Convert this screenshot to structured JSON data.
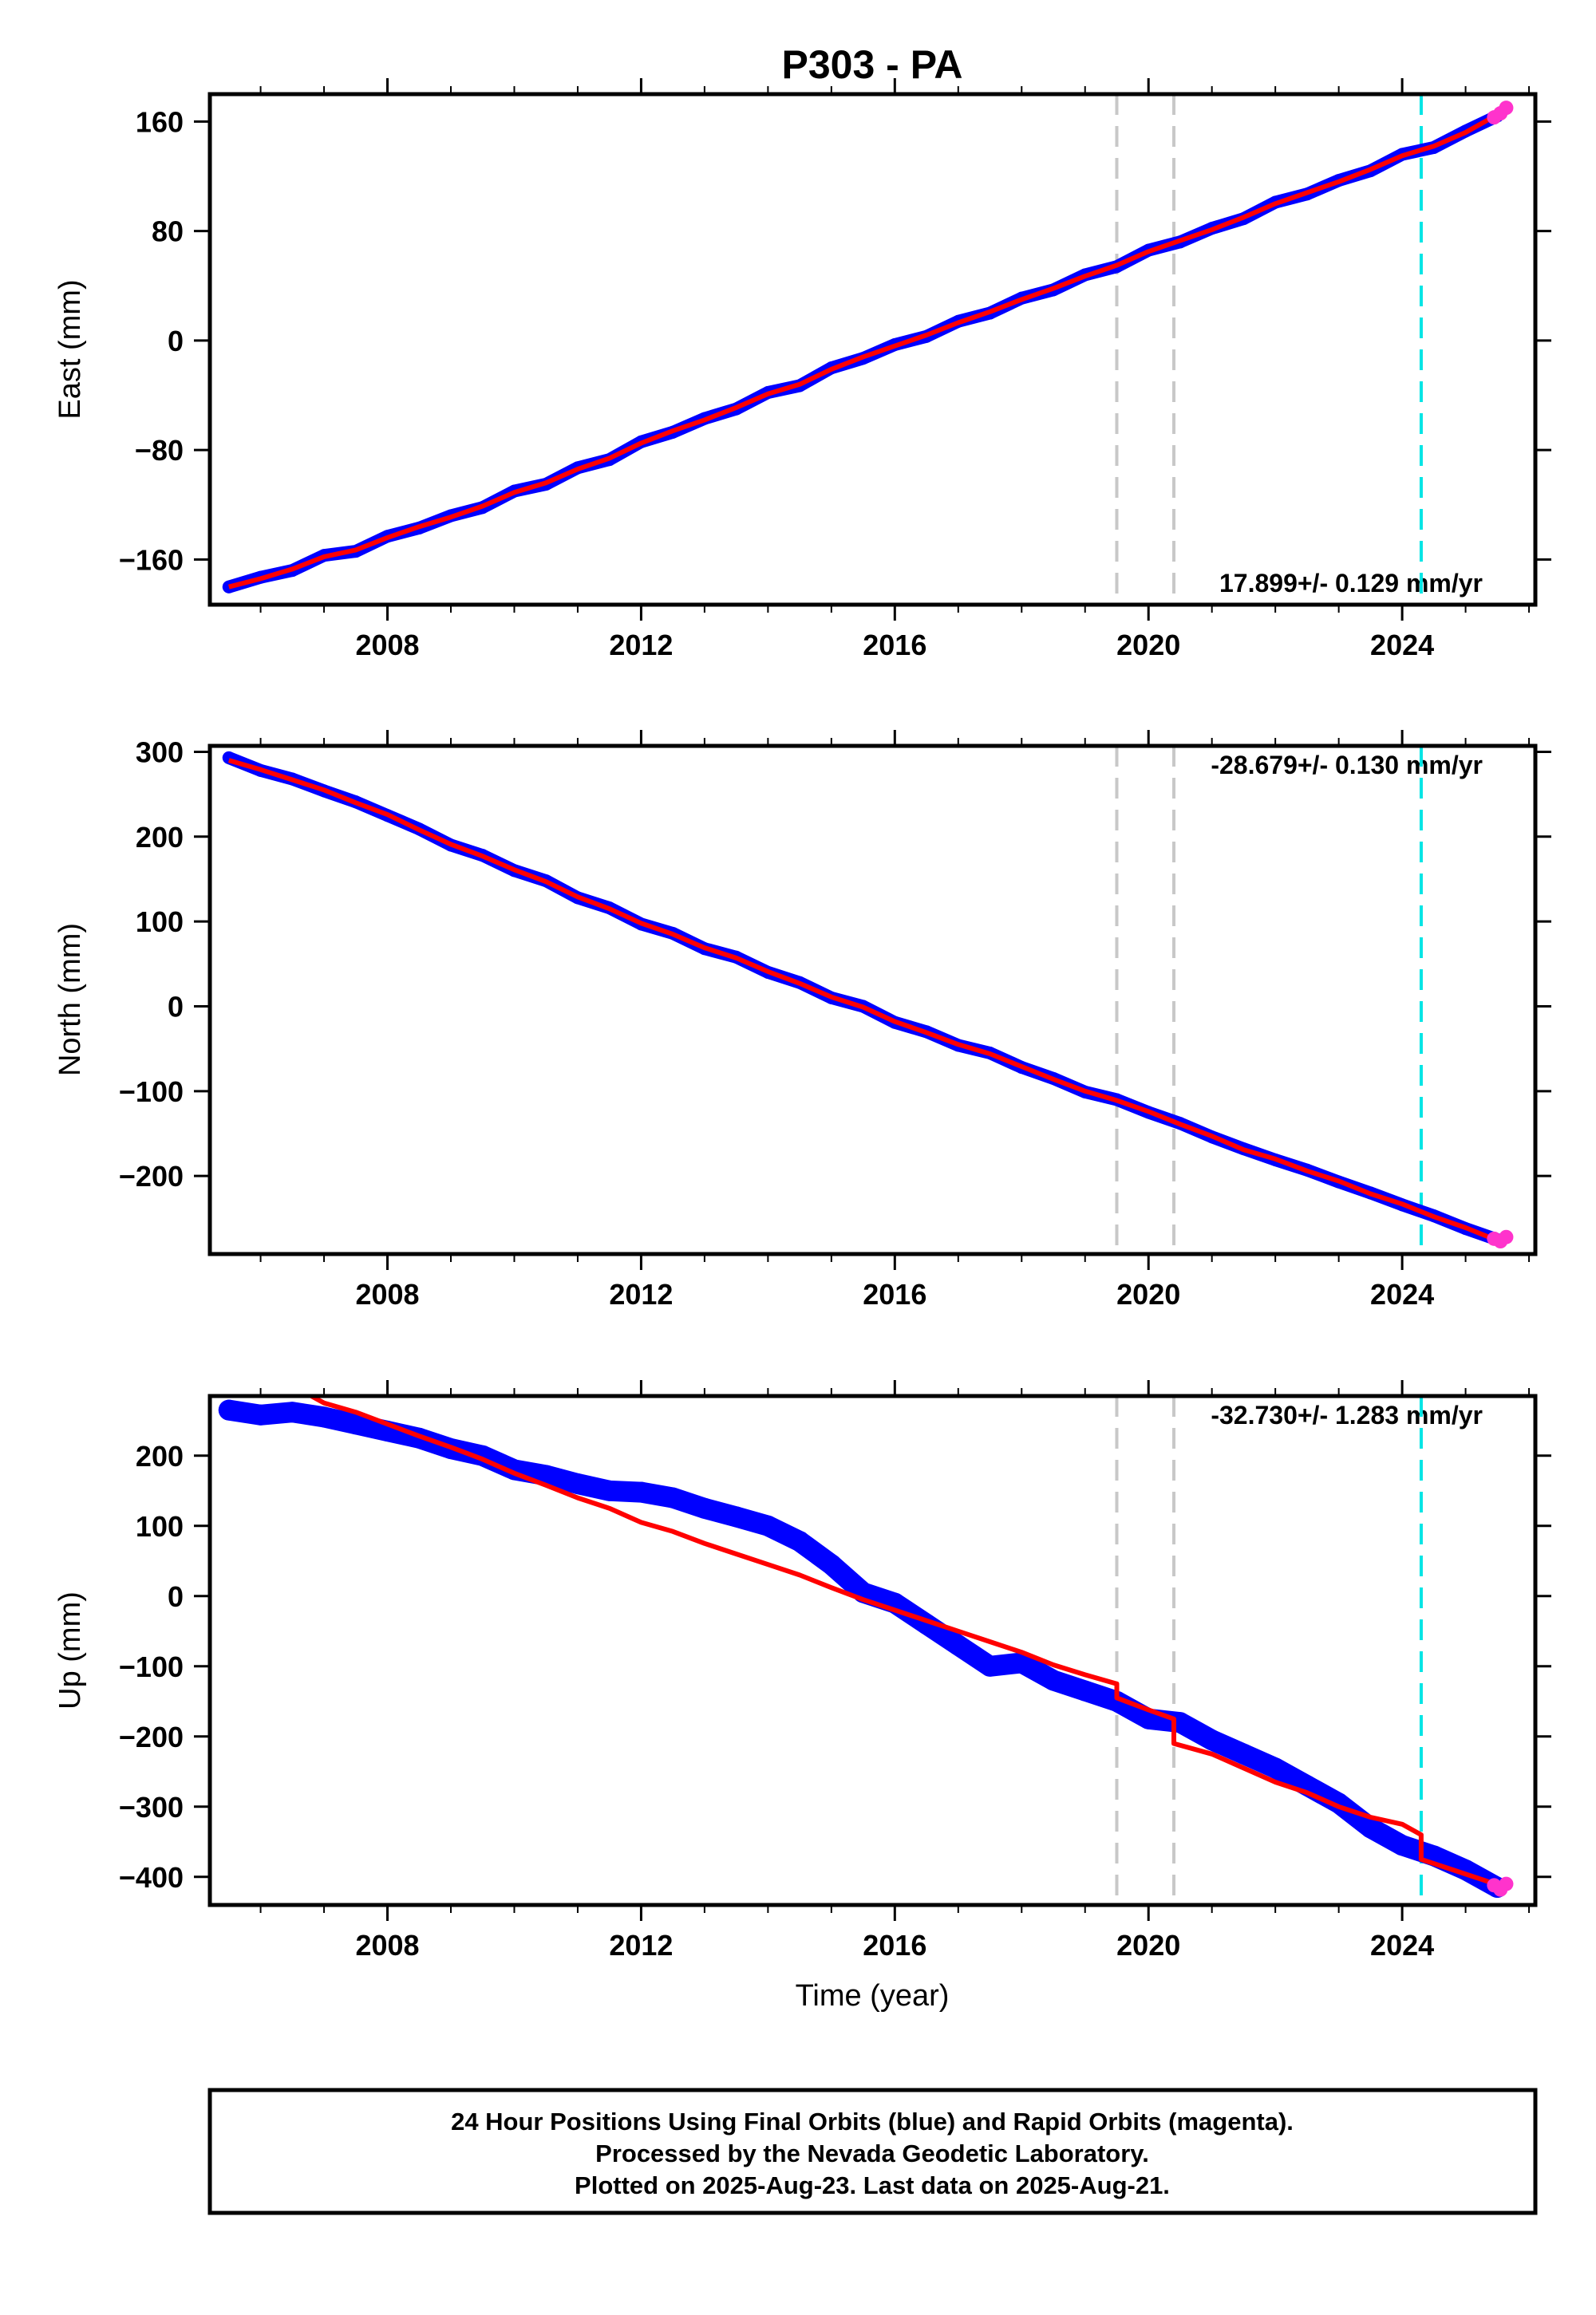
{
  "title": "P303 - PA",
  "footer": {
    "lines": [
      "24 Hour Positions Using Final Orbits (blue) and Rapid Orbits (magenta).",
      "Processed by the Nevada Geodetic Laboratory.",
      "Plotted on 2025-Aug-23. Last data on 2025-Aug-21."
    ]
  },
  "colors": {
    "final_orbits": "#0000ff",
    "rapid_orbits": "#ff33cc",
    "model": "#ff0000",
    "equipment_change": "#c8c8c8",
    "earthquake": "#00e5e5"
  },
  "chart_data": [
    {
      "type": "line",
      "panel": "east",
      "ylabel": "East (mm)",
      "xlabel": "",
      "xlim": [
        2005.2,
        2026.1
      ],
      "ylim": [
        -193,
        180
      ],
      "x_ticks": [
        2008,
        2012,
        2016,
        2020,
        2024
      ],
      "y_ticks": [
        160,
        80,
        0,
        -80,
        -160
      ],
      "y_tick_labels": [
        "160",
        "80",
        "0",
        "−80",
        "−160"
      ],
      "rate_label": "17.899+/- 0.129 mm/yr",
      "rate_label_position": "bottom-right",
      "gray_dashed_lines": [
        2019.5,
        2020.4
      ],
      "cyan_dashed_lines": [
        2024.3
      ],
      "series": [
        {
          "role": "final",
          "x": [
            2005.5,
            2006.0,
            2006.5,
            2007.0,
            2007.5,
            2008.0,
            2008.5,
            2009.0,
            2009.5,
            2010.0,
            2010.5,
            2011.0,
            2011.5,
            2012.0,
            2012.5,
            2013.0,
            2013.5,
            2014.0,
            2014.5,
            2015.0,
            2015.5,
            2016.0,
            2016.5,
            2017.0,
            2017.5,
            2018.0,
            2018.5,
            2019.0,
            2019.5,
            2020.0,
            2020.5,
            2021.0,
            2021.5,
            2022.0,
            2022.5,
            2023.0,
            2023.5,
            2024.0,
            2024.5,
            2025.0,
            2025.5
          ],
          "values": [
            -180,
            -173,
            -168,
            -157,
            -154,
            -143,
            -137,
            -128,
            -122,
            -110,
            -105,
            -93,
            -87,
            -74,
            -67,
            -57,
            -50,
            -38,
            -33,
            -20,
            -13,
            -3,
            3,
            14,
            20,
            31,
            37,
            48,
            54,
            66,
            72,
            82,
            89,
            101,
            107,
            117,
            124,
            136,
            141,
            153,
            164
          ]
        },
        {
          "role": "model",
          "x": [
            2005.5,
            2006.0,
            2006.5,
            2007.0,
            2007.5,
            2008.0,
            2008.5,
            2009.0,
            2009.5,
            2010.0,
            2010.5,
            2011.0,
            2011.5,
            2012.0,
            2012.5,
            2013.0,
            2013.5,
            2014.0,
            2014.5,
            2015.0,
            2015.5,
            2016.0,
            2016.5,
            2017.0,
            2017.5,
            2018.0,
            2018.5,
            2019.0,
            2019.5,
            2020.0,
            2020.5,
            2021.0,
            2021.5,
            2022.0,
            2022.5,
            2023.0,
            2023.5,
            2024.0,
            2024.5,
            2025.0,
            2025.5
          ],
          "values": [
            -180,
            -174,
            -167,
            -158,
            -153,
            -144,
            -136,
            -129,
            -121,
            -111,
            -104,
            -94,
            -86,
            -75,
            -66,
            -58,
            -49,
            -39,
            -32,
            -21,
            -12,
            -4,
            4,
            13,
            21,
            30,
            38,
            47,
            55,
            65,
            73,
            81,
            90,
            100,
            108,
            116,
            125,
            135,
            142,
            152,
            165
          ]
        },
        {
          "role": "rapid",
          "x": [
            2025.45,
            2025.55,
            2025.64
          ],
          "values": [
            163,
            166,
            170
          ]
        }
      ]
    },
    {
      "type": "line",
      "panel": "north",
      "ylabel": "North (mm)",
      "xlabel": "",
      "xlim": [
        2005.2,
        2026.1
      ],
      "ylim": [
        -292,
        307
      ],
      "x_ticks": [
        2008,
        2012,
        2016,
        2020,
        2024
      ],
      "y_ticks": [
        300,
        200,
        100,
        0,
        -100,
        -200
      ],
      "y_tick_labels": [
        "300",
        "200",
        "100",
        "0",
        "−100",
        "−200"
      ],
      "rate_label": "-28.679+/- 0.130 mm/yr",
      "rate_label_position": "top-right",
      "gray_dashed_lines": [
        2019.5,
        2020.4
      ],
      "cyan_dashed_lines": [
        2024.3
      ],
      "series": [
        {
          "role": "final",
          "x": [
            2005.5,
            2006.0,
            2006.5,
            2007.0,
            2007.5,
            2008.0,
            2008.5,
            2009.0,
            2009.5,
            2010.0,
            2010.5,
            2011.0,
            2011.5,
            2012.0,
            2012.5,
            2013.0,
            2013.5,
            2014.0,
            2014.5,
            2015.0,
            2015.5,
            2016.0,
            2016.5,
            2017.0,
            2017.5,
            2018.0,
            2018.5,
            2019.0,
            2019.5,
            2020.0,
            2020.5,
            2021.0,
            2021.5,
            2022.0,
            2022.5,
            2023.0,
            2023.5,
            2024.0,
            2024.5,
            2025.0,
            2025.5
          ],
          "values": [
            293,
            278,
            268,
            254,
            241,
            225,
            209,
            190,
            178,
            160,
            148,
            128,
            116,
            97,
            86,
            68,
            58,
            40,
            28,
            10,
            0,
            -19,
            -30,
            -46,
            -55,
            -72,
            -85,
            -101,
            -110,
            -125,
            -138,
            -154,
            -168,
            -181,
            -193,
            -207,
            -220,
            -234,
            -247,
            -262,
            -275
          ]
        },
        {
          "role": "model",
          "x": [
            2005.5,
            2006.0,
            2006.5,
            2007.0,
            2007.5,
            2008.0,
            2008.5,
            2009.0,
            2009.5,
            2010.0,
            2010.5,
            2011.0,
            2011.5,
            2012.0,
            2012.5,
            2013.0,
            2013.5,
            2014.0,
            2014.5,
            2015.0,
            2015.5,
            2016.0,
            2016.5,
            2017.0,
            2017.5,
            2018.0,
            2018.5,
            2019.0,
            2019.5,
            2020.0,
            2020.5,
            2021.0,
            2021.5,
            2022.0,
            2022.5,
            2023.0,
            2023.5,
            2024.0,
            2024.5,
            2025.0,
            2025.5
          ],
          "values": [
            290,
            279,
            267,
            255,
            240,
            226,
            208,
            191,
            177,
            161,
            147,
            129,
            115,
            98,
            85,
            69,
            57,
            41,
            27,
            11,
            -1,
            -18,
            -31,
            -45,
            -56,
            -71,
            -86,
            -100,
            -111,
            -124,
            -139,
            -153,
            -169,
            -180,
            -194,
            -206,
            -221,
            -233,
            -248,
            -261,
            -276
          ]
        },
        {
          "role": "rapid",
          "x": [
            2025.45,
            2025.55,
            2025.64
          ],
          "values": [
            -274,
            -277,
            -272
          ]
        }
      ]
    },
    {
      "type": "line",
      "panel": "up",
      "ylabel": "Up (mm)",
      "xlabel": "Time (year)",
      "xlim": [
        2005.2,
        2026.1
      ],
      "ylim": [
        -440,
        285
      ],
      "x_ticks": [
        2008,
        2012,
        2016,
        2020,
        2024
      ],
      "y_ticks": [
        200,
        100,
        0,
        -100,
        -200,
        -300,
        -400
      ],
      "y_tick_labels": [
        "200",
        "100",
        "0",
        "−100",
        "−200",
        "−300",
        "−400"
      ],
      "rate_label": "-32.730+/- 1.283 mm/yr",
      "rate_label_position": "top-right",
      "gray_dashed_lines": [
        2019.5,
        2020.4
      ],
      "cyan_dashed_lines": [
        2024.3
      ],
      "series": [
        {
          "role": "final",
          "x": [
            2005.5,
            2006.0,
            2006.5,
            2007.0,
            2007.5,
            2008.0,
            2008.5,
            2009.0,
            2009.5,
            2010.0,
            2010.5,
            2011.0,
            2011.5,
            2012.0,
            2012.5,
            2013.0,
            2013.5,
            2014.0,
            2014.5,
            2015.0,
            2015.5,
            2016.0,
            2016.5,
            2017.0,
            2017.5,
            2018.0,
            2018.5,
            2019.0,
            2019.5,
            2020.0,
            2020.5,
            2021.0,
            2021.5,
            2022.0,
            2022.5,
            2023.0,
            2023.5,
            2024.0,
            2024.5,
            2025.0,
            2025.5
          ],
          "values": [
            265,
            258,
            262,
            255,
            245,
            235,
            225,
            210,
            200,
            180,
            172,
            160,
            150,
            148,
            140,
            125,
            113,
            100,
            78,
            45,
            5,
            -10,
            -40,
            -70,
            -100,
            -95,
            -120,
            -135,
            -150,
            -175,
            -180,
            -205,
            -225,
            -245,
            -270,
            -295,
            -330,
            -355,
            -370,
            -390,
            -415
          ]
        },
        {
          "role": "model",
          "x": [
            2006.8,
            2007.0,
            2007.5,
            2008.0,
            2008.5,
            2009.0,
            2009.5,
            2010.0,
            2010.5,
            2011.0,
            2011.5,
            2012.0,
            2012.5,
            2013.0,
            2013.5,
            2014.0,
            2014.5,
            2015.0,
            2015.5,
            2016.0,
            2016.5,
            2017.0,
            2017.5,
            2018.0,
            2018.5,
            2019.0,
            2019.5,
            2019.5,
            2020.0,
            2020.4,
            2020.4,
            2021.0,
            2021.5,
            2022.0,
            2022.5,
            2023.0,
            2023.5,
            2024.0,
            2024.3,
            2024.3,
            2024.8,
            2025.3,
            2025.6
          ],
          "values": [
            285,
            275,
            262,
            245,
            228,
            212,
            195,
            175,
            158,
            140,
            125,
            105,
            92,
            75,
            60,
            45,
            30,
            12,
            -5,
            -20,
            -35,
            -50,
            -65,
            -80,
            -98,
            -112,
            -125,
            -145,
            -162,
            -175,
            -210,
            -225,
            -245,
            -265,
            -280,
            -300,
            -315,
            -325,
            -340,
            -375,
            -390,
            -405,
            -415
          ]
        },
        {
          "role": "rapid",
          "x": [
            2025.45,
            2025.55,
            2025.64
          ],
          "values": [
            -412,
            -418,
            -410
          ]
        }
      ]
    }
  ]
}
